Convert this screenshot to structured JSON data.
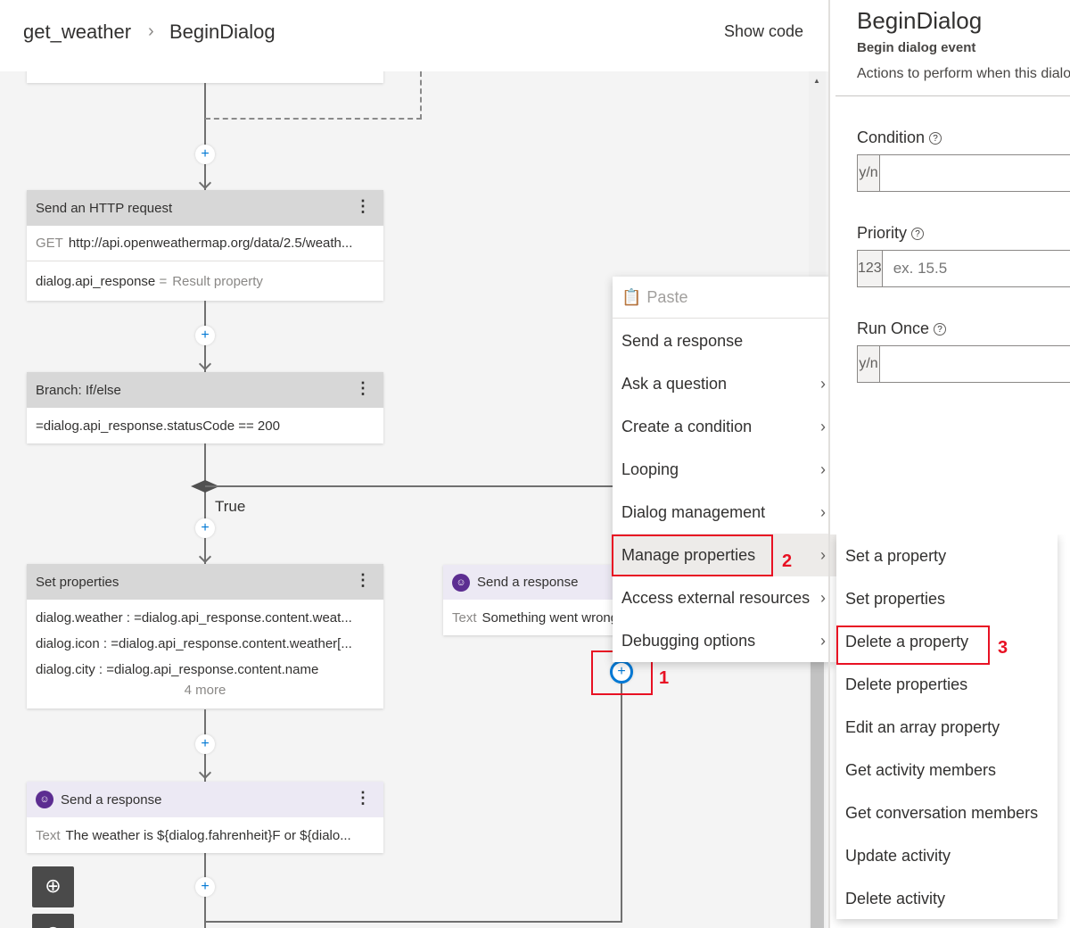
{
  "header": {
    "breadcrumb": [
      "get_weather",
      "BeginDialog"
    ],
    "separator": "›",
    "show_code": "Show code"
  },
  "canvas": {
    "http_card": {
      "title": "Send an HTTP request",
      "method": "GET",
      "url": "http://api.openweathermap.org/data/2.5/weath...",
      "result_var": "dialog.api_response",
      "result_eq": "=",
      "result_label": "Result property"
    },
    "branch_card": {
      "title": "Branch: If/else",
      "condition": "=dialog.api_response.statusCode == 200"
    },
    "true_label": "True",
    "set_props_card": {
      "title": "Set properties",
      "rows": [
        "dialog.weather : =dialog.api_response.content.weat...",
        "dialog.icon : =dialog.api_response.content.weather[...",
        "dialog.city : =dialog.api_response.content.name"
      ],
      "more": "4 more"
    },
    "send_card": {
      "title": "Send a response",
      "text_label": "Text",
      "text": "The weather is ${dialog.fahrenheit}F or ${dialo..."
    },
    "else_send_card": {
      "title": "Send a response",
      "text_label": "Text",
      "text": "Something went wrong"
    },
    "plus": "+"
  },
  "context_menu": {
    "paste": "Paste",
    "items": [
      {
        "label": "Send a response",
        "submenu": false
      },
      {
        "label": "Ask a question",
        "submenu": true
      },
      {
        "label": "Create a condition",
        "submenu": true
      },
      {
        "label": "Looping",
        "submenu": true
      },
      {
        "label": "Dialog management",
        "submenu": true
      },
      {
        "label": "Manage properties",
        "submenu": true,
        "selected": true
      },
      {
        "label": "Access external resources",
        "submenu": true
      },
      {
        "label": "Debugging options",
        "submenu": true
      }
    ]
  },
  "submenu": {
    "items": [
      "Set a property",
      "Set properties",
      "Delete a property",
      "Delete properties",
      "Edit an array property",
      "Get activity members",
      "Get conversation members",
      "Update activity",
      "Delete activity"
    ]
  },
  "annotations": [
    "1",
    "2",
    "3"
  ],
  "panel": {
    "title": "BeginDialog",
    "subtitle": "Begin dialog event",
    "description": "Actions to perform when this dialog begins.",
    "condition": {
      "label": "Condition",
      "prefix": "y/n",
      "value": ""
    },
    "priority": {
      "label": "Priority",
      "prefix": "123",
      "placeholder": "ex. 15.5"
    },
    "run_once": {
      "label": "Run Once",
      "prefix": "y/n",
      "value": ""
    }
  },
  "colors": {
    "accent": "#0078d4",
    "annotation": "#e81123",
    "bot": "#5c2d91"
  }
}
